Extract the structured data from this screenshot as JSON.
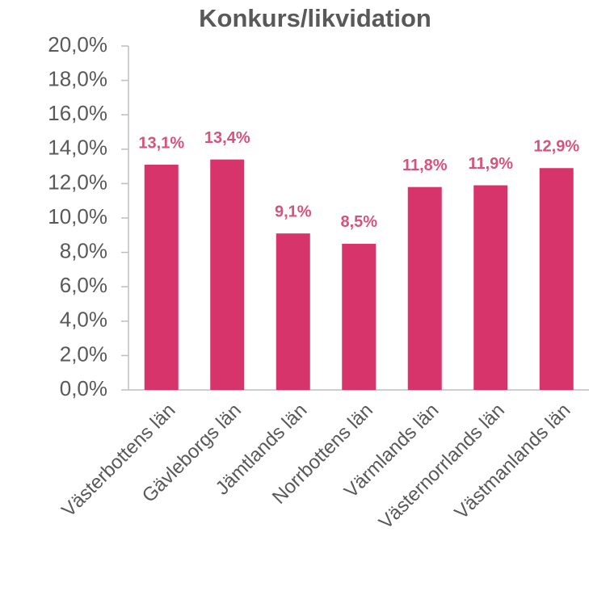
{
  "chart_data": {
    "type": "bar",
    "title": "Konkurs/likvidation",
    "categories": [
      "Västerbottens län",
      "Gävleborgs län",
      "Jämtlands län",
      "Norrbottens län",
      "Värmlands län",
      "Västernorrlands län",
      "Västmanlands län"
    ],
    "values": [
      13.1,
      13.4,
      9.1,
      8.5,
      11.8,
      11.9,
      12.9
    ],
    "value_labels": [
      "13,1%",
      "13,4%",
      "9,1%",
      "8,5%",
      "11,8%",
      "11,9%",
      "12,9%"
    ],
    "color": "#d6346a",
    "label_color": "#d6547c",
    "ylim": [
      0,
      20
    ],
    "yticks": [
      {
        "value": 0,
        "label": "0,0%"
      },
      {
        "value": 2,
        "label": "2,0%"
      },
      {
        "value": 4,
        "label": "4,0%"
      },
      {
        "value": 6,
        "label": "6,0%"
      },
      {
        "value": 8,
        "label": "8,0%"
      },
      {
        "value": 10,
        "label": "10,0%"
      },
      {
        "value": 12,
        "label": "12,0%"
      },
      {
        "value": 14,
        "label": "14,0%"
      },
      {
        "value": 16,
        "label": "16,0%"
      },
      {
        "value": 18,
        "label": "18,0%"
      },
      {
        "value": 20,
        "label": "20,0%"
      }
    ]
  }
}
